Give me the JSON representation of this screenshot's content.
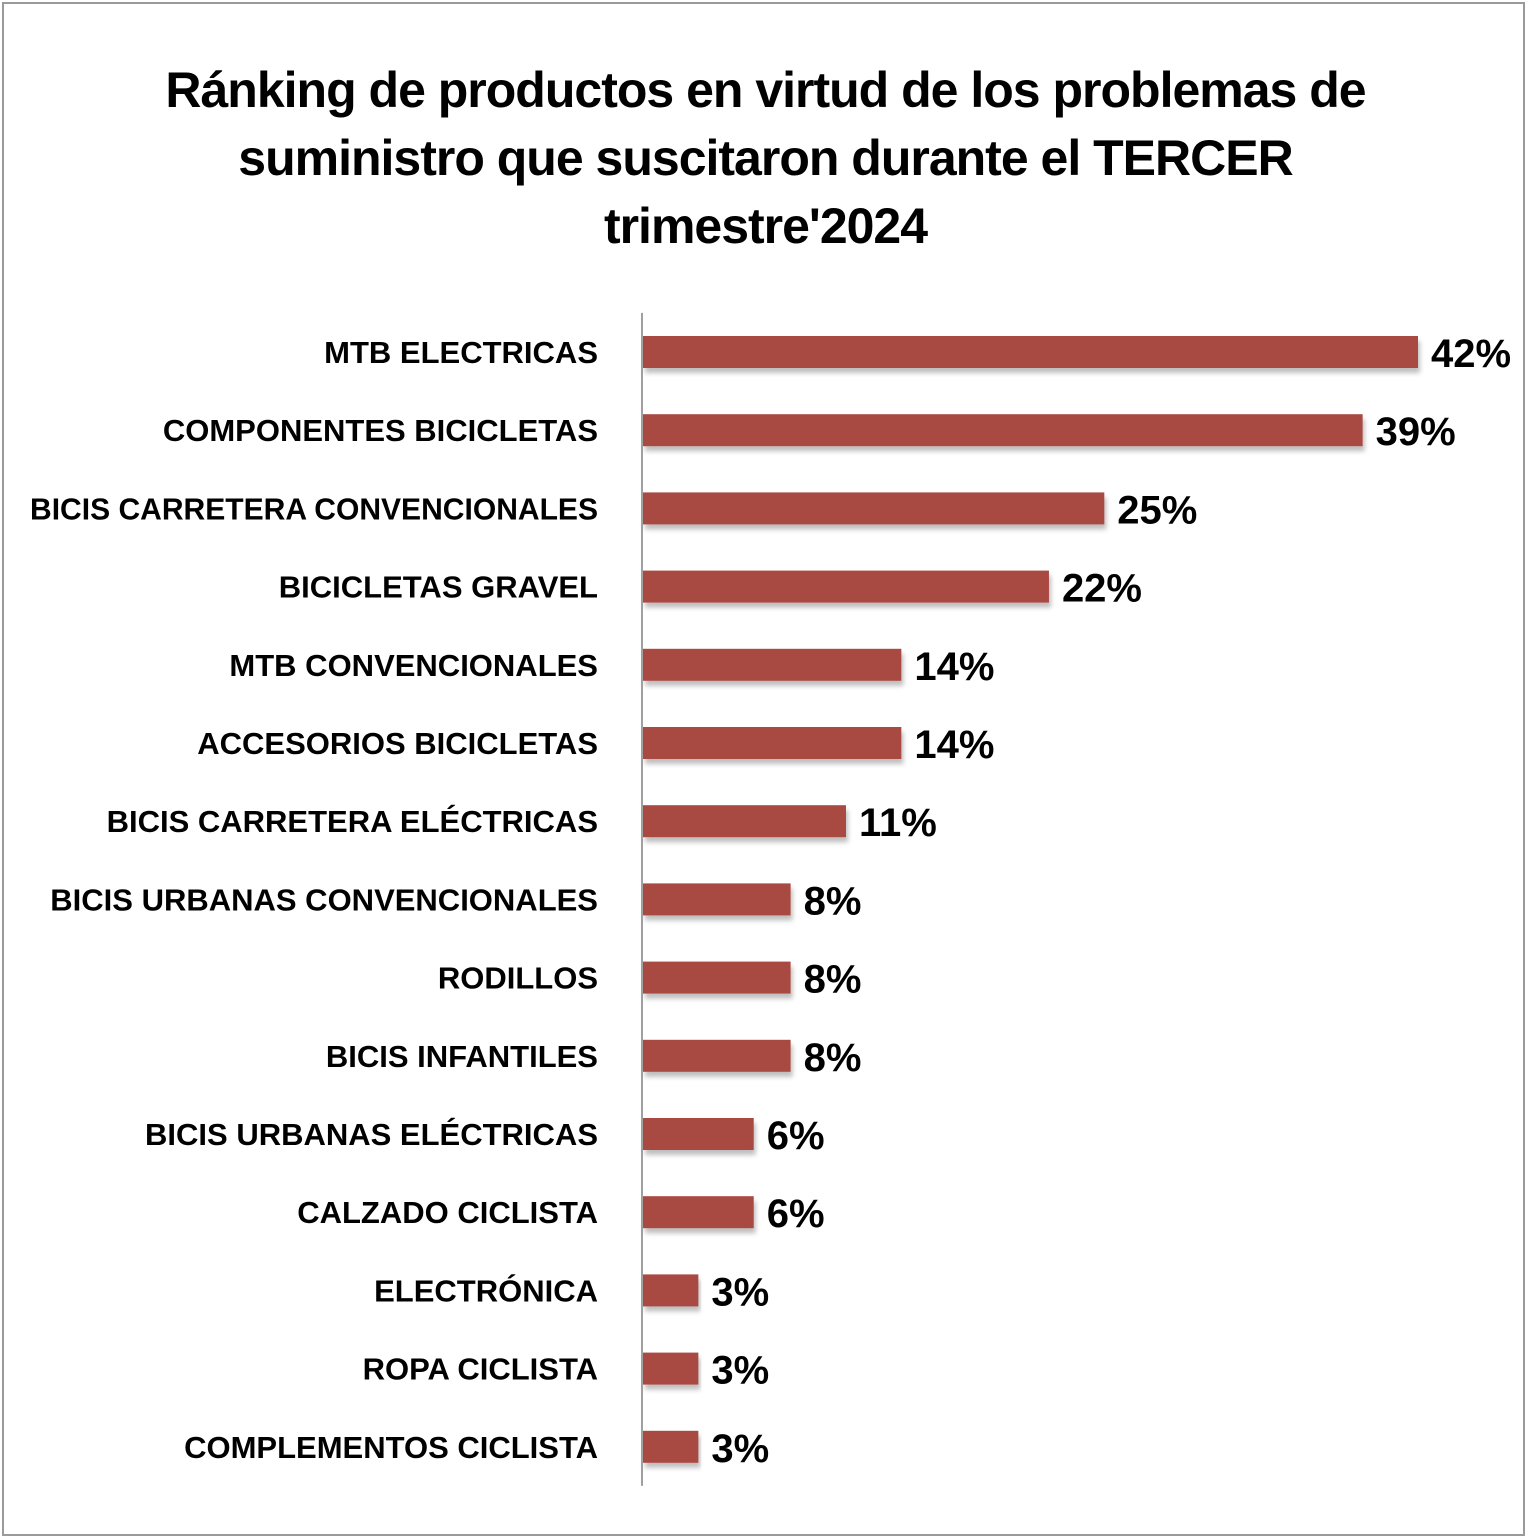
{
  "chart_data": {
    "type": "bar",
    "orientation": "horizontal",
    "title_lines": [
      "Ránking de productos en virtud de los problemas de",
      "suministro que suscitaron durante el TERCER",
      "trimestre'2024"
    ],
    "categories": [
      "MTB ELECTRICAS",
      "COMPONENTES BICICLETAS",
      "BICIS CARRETERA CONVENCIONALES",
      "BICICLETAS GRAVEL",
      "MTB CONVENCIONALES",
      "ACCESORIOS BICICLETAS",
      "BICIS CARRETERA ELÉCTRICAS",
      "BICIS URBANAS CONVENCIONALES",
      "RODILLOS",
      "BICIS INFANTILES",
      "BICIS URBANAS ELÉCTRICAS",
      "CALZADO CICLISTA",
      "ELECTRÓNICA",
      "ROPA CICLISTA",
      "COMPLEMENTOS CICLISTA"
    ],
    "values": [
      42,
      39,
      25,
      22,
      14,
      14,
      11,
      8,
      8,
      8,
      6,
      6,
      3,
      3,
      3
    ],
    "data_labels": [
      "42%",
      "39%",
      "25%",
      "22%",
      "14%",
      "14%",
      "11%",
      "8%",
      "8%",
      "8%",
      "6%",
      "6%",
      "3%",
      "3%",
      "3%"
    ],
    "unit": "%",
    "xlim": [
      0,
      42
    ],
    "grid": false,
    "legend": "none",
    "bar_color": "#a84842"
  }
}
